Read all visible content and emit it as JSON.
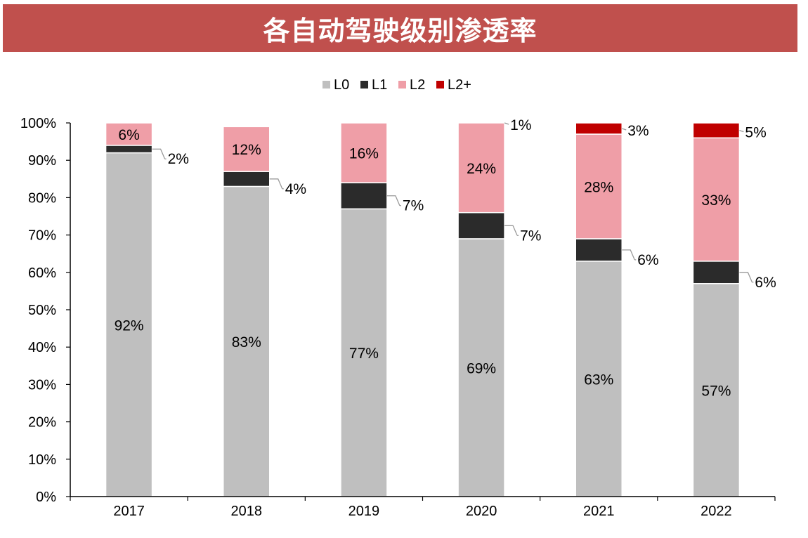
{
  "title": "各自动驾驶级别渗透率",
  "chart_data": {
    "type": "bar",
    "stacked": true,
    "categories": [
      "2017",
      "2018",
      "2019",
      "2020",
      "2021",
      "2022"
    ],
    "series": [
      {
        "name": "L0",
        "color": "#bfbfbf",
        "values": [
          92,
          83,
          77,
          69,
          63,
          57
        ],
        "labels": [
          "92%",
          "83%",
          "77%",
          "69%",
          "63%",
          "57%"
        ]
      },
      {
        "name": "L1",
        "color": "#2b2b2b",
        "values": [
          2,
          4,
          7,
          7,
          6,
          6
        ],
        "labels": [
          "2%",
          "4%",
          "7%",
          "7%",
          "6%",
          "6%"
        ]
      },
      {
        "name": "L2",
        "color": "#ef9ea7",
        "values": [
          6,
          12,
          16,
          24,
          28,
          33
        ],
        "labels": [
          "6%",
          "12%",
          "16%",
          "24%",
          "28%",
          "33%"
        ]
      },
      {
        "name": "L2+",
        "color": "#c00000",
        "values": [
          0,
          0,
          0,
          1,
          3,
          5
        ],
        "labels": [
          "",
          "",
          "",
          "1%",
          "3%",
          "5%"
        ]
      }
    ],
    "ylim": [
      0,
      100
    ],
    "yticks": [
      "0%",
      "10%",
      "20%",
      "30%",
      "40%",
      "50%",
      "60%",
      "70%",
      "80%",
      "90%",
      "100%"
    ],
    "legend": "top-center",
    "grid": false
  }
}
